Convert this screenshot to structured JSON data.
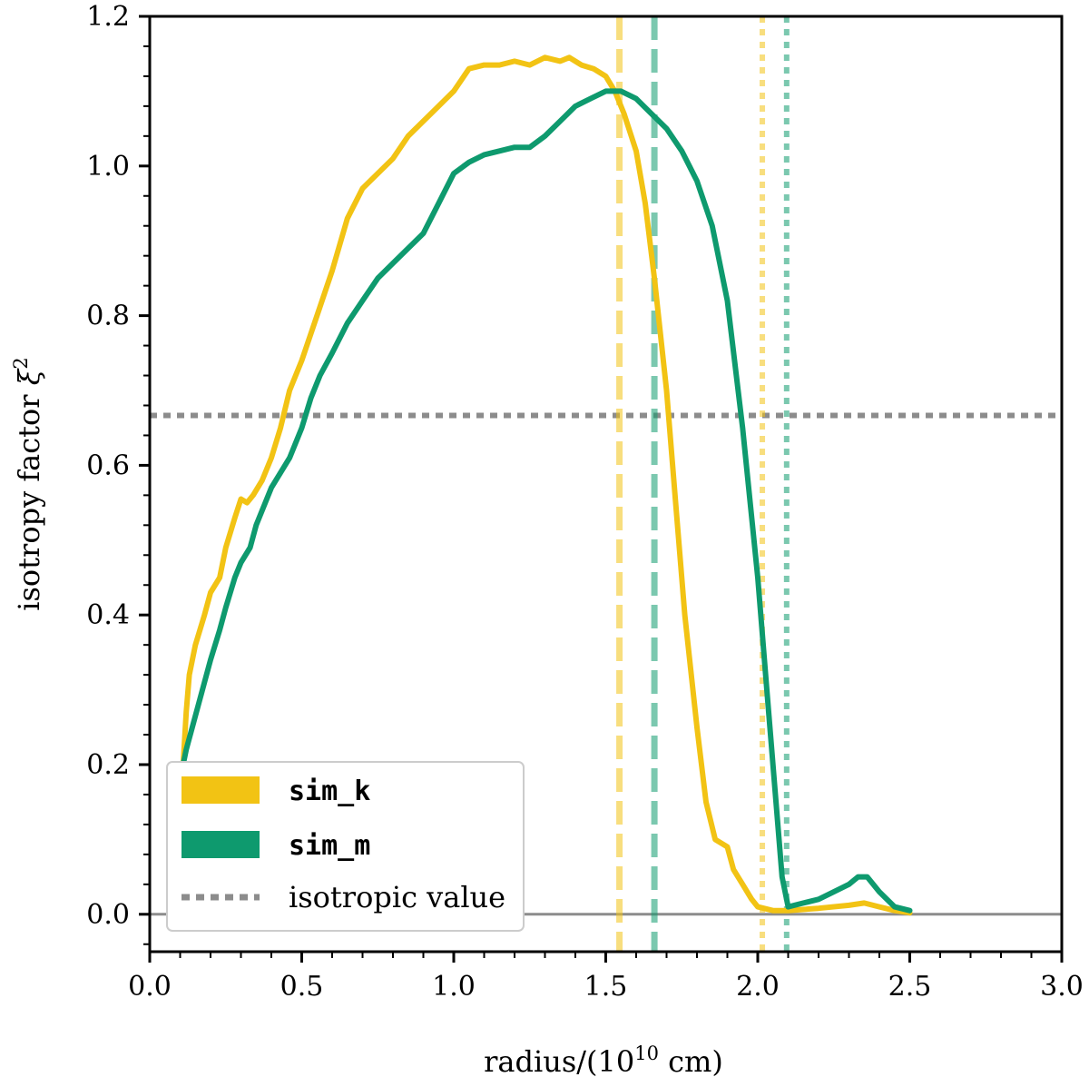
{
  "chart_data": {
    "type": "line",
    "xlabel": "radius/(10",
    "xlabel_exp": "10",
    "xlabel_unit": " cm)",
    "ylabel": "isotropy factor ",
    "ylabel_sym": "ξ",
    "ylabel_exp": "2",
    "xlim": [
      0.0,
      3.0
    ],
    "ylim": [
      -0.05,
      1.2
    ],
    "xticks": [
      0.0,
      0.5,
      1.0,
      1.5,
      2.0,
      2.5,
      3.0
    ],
    "xtick_labels": [
      "0.0",
      "0.5",
      "1.0",
      "1.5",
      "2.0",
      "2.5",
      "3.0"
    ],
    "yticks": [
      0.0,
      0.2,
      0.4,
      0.6,
      0.8,
      1.0,
      1.2
    ],
    "ytick_labels": [
      "0.0",
      "0.2",
      "0.4",
      "0.6",
      "0.8",
      "1.0",
      "1.2"
    ],
    "isotropic_value": 0.6667,
    "zero_line": 0.0,
    "legend_position": "lower-left",
    "series": [
      {
        "name": "sim_k",
        "color": "#F2C314",
        "x": [
          0.11,
          0.12,
          0.13,
          0.15,
          0.18,
          0.2,
          0.23,
          0.25,
          0.28,
          0.3,
          0.32,
          0.34,
          0.37,
          0.4,
          0.43,
          0.46,
          0.5,
          0.55,
          0.6,
          0.65,
          0.7,
          0.75,
          0.8,
          0.85,
          0.9,
          0.95,
          1.0,
          1.05,
          1.1,
          1.15,
          1.2,
          1.25,
          1.3,
          1.35,
          1.38,
          1.42,
          1.46,
          1.5,
          1.53,
          1.56,
          1.6,
          1.63,
          1.66,
          1.7,
          1.73,
          1.76,
          1.8,
          1.83,
          1.86,
          1.9,
          1.92,
          1.95,
          1.98,
          2.0,
          2.05,
          2.1,
          2.2,
          2.3,
          2.35,
          2.4,
          2.45,
          2.5
        ],
        "y": [
          0.2,
          0.27,
          0.32,
          0.36,
          0.4,
          0.43,
          0.45,
          0.49,
          0.53,
          0.555,
          0.55,
          0.56,
          0.58,
          0.61,
          0.65,
          0.7,
          0.74,
          0.8,
          0.86,
          0.93,
          0.97,
          0.99,
          1.01,
          1.04,
          1.06,
          1.08,
          1.1,
          1.13,
          1.135,
          1.135,
          1.14,
          1.135,
          1.145,
          1.14,
          1.145,
          1.135,
          1.13,
          1.12,
          1.1,
          1.07,
          1.02,
          0.95,
          0.85,
          0.7,
          0.55,
          0.4,
          0.25,
          0.15,
          0.1,
          0.09,
          0.06,
          0.04,
          0.02,
          0.01,
          0.005,
          0.005,
          0.008,
          0.012,
          0.015,
          0.01,
          0.005,
          0.002
        ]
      },
      {
        "name": "sim_m",
        "color": "#0E9A6E",
        "x": [
          0.11,
          0.12,
          0.14,
          0.16,
          0.18,
          0.2,
          0.23,
          0.25,
          0.28,
          0.3,
          0.33,
          0.35,
          0.38,
          0.4,
          0.43,
          0.46,
          0.5,
          0.53,
          0.56,
          0.6,
          0.65,
          0.7,
          0.75,
          0.8,
          0.85,
          0.9,
          0.95,
          1.0,
          1.05,
          1.1,
          1.15,
          1.2,
          1.25,
          1.3,
          1.35,
          1.4,
          1.45,
          1.5,
          1.55,
          1.6,
          1.65,
          1.7,
          1.75,
          1.8,
          1.85,
          1.9,
          1.95,
          2.0,
          2.03,
          2.06,
          2.08,
          2.1,
          2.15,
          2.2,
          2.25,
          2.3,
          2.33,
          2.36,
          2.4,
          2.45,
          2.5
        ],
        "y": [
          0.2,
          0.22,
          0.25,
          0.28,
          0.31,
          0.34,
          0.38,
          0.41,
          0.45,
          0.47,
          0.49,
          0.52,
          0.55,
          0.57,
          0.59,
          0.61,
          0.65,
          0.69,
          0.72,
          0.75,
          0.79,
          0.82,
          0.85,
          0.87,
          0.89,
          0.91,
          0.95,
          0.99,
          1.005,
          1.015,
          1.02,
          1.025,
          1.025,
          1.04,
          1.06,
          1.08,
          1.09,
          1.1,
          1.1,
          1.09,
          1.07,
          1.05,
          1.02,
          0.98,
          0.92,
          0.82,
          0.65,
          0.45,
          0.3,
          0.15,
          0.05,
          0.01,
          0.015,
          0.02,
          0.03,
          0.04,
          0.05,
          0.05,
          0.03,
          0.01,
          0.005
        ]
      }
    ],
    "vlines": [
      {
        "x": 1.545,
        "series": "sim_k",
        "style": "dashed"
      },
      {
        "x": 1.66,
        "series": "sim_m",
        "style": "dashed"
      },
      {
        "x": 2.015,
        "series": "sim_k",
        "style": "dotted"
      },
      {
        "x": 2.095,
        "series": "sim_m",
        "style": "dotted"
      }
    ],
    "legend": [
      {
        "label": "sim_k",
        "color": "#F2C314",
        "style": "solid"
      },
      {
        "label": "sim_m",
        "color": "#0E9A6E",
        "style": "solid"
      },
      {
        "label": "isotropic value",
        "color": "#8C8C8C",
        "style": "dotted"
      }
    ],
    "reference_color": "#8C8C8C"
  }
}
